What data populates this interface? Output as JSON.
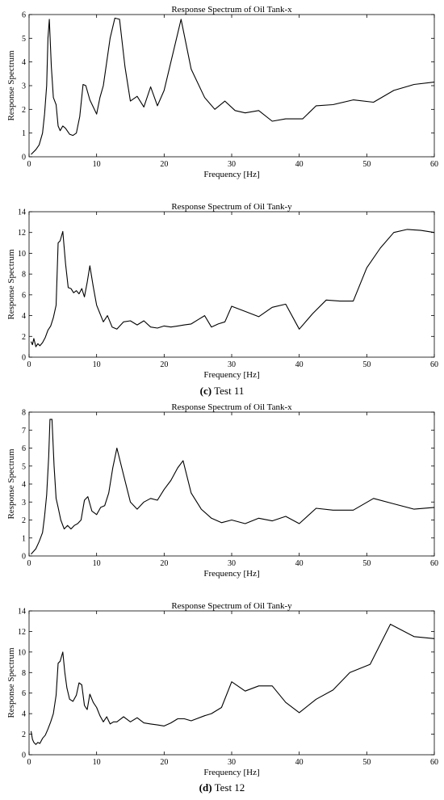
{
  "captions": [
    {
      "label": "(c)",
      "text": "Test 11"
    },
    {
      "label": "(d)",
      "text": "Test 12"
    }
  ],
  "chart_data": [
    {
      "type": "line",
      "title": "Response Spectrum of Oil Tank-x",
      "xlabel": "Frequency [Hz]",
      "ylabel": "Response Spectrum",
      "xlim": [
        0,
        60
      ],
      "ylim": [
        0,
        6
      ],
      "xticks": [
        0,
        10,
        20,
        30,
        40,
        50,
        60
      ],
      "yticks": [
        0,
        1,
        2,
        3,
        4,
        5,
        6
      ],
      "grid": false,
      "x": [
        0.3,
        1,
        1.5,
        2,
        2.3,
        2.6,
        2.8,
        3,
        3.3,
        3.6,
        4,
        4.3,
        4.6,
        5,
        5.4,
        6,
        6.5,
        7,
        7.5,
        8,
        8.4,
        9,
        9.5,
        10,
        10.5,
        11,
        12,
        12.7,
        13.4,
        14.2,
        15,
        16,
        17,
        18,
        19,
        20,
        22.5,
        24,
        26,
        27.5,
        29,
        30.5,
        32,
        34,
        36,
        38,
        40.5,
        42.5,
        45,
        48,
        51,
        54,
        57,
        60
      ],
      "y": [
        0.1,
        0.3,
        0.5,
        1.0,
        1.8,
        3.0,
        5.0,
        5.8,
        3.8,
        2.5,
        2.2,
        1.3,
        1.1,
        1.3,
        1.2,
        0.95,
        0.9,
        1.0,
        1.7,
        3.05,
        3.0,
        2.4,
        2.1,
        1.8,
        2.5,
        3.0,
        5.0,
        5.85,
        5.8,
        3.8,
        2.35,
        2.55,
        2.1,
        2.95,
        2.15,
        2.8,
        5.8,
        3.7,
        2.5,
        2.0,
        2.35,
        1.95,
        1.85,
        1.95,
        1.5,
        1.6,
        1.6,
        2.15,
        2.2,
        2.4,
        2.3,
        2.8,
        3.05,
        3.15
      ]
    },
    {
      "type": "line",
      "title": "Response Spectrum of Oil Tank-y",
      "xlabel": "Frequency [Hz]",
      "ylabel": "Response Spectrum",
      "xlim": [
        0,
        60
      ],
      "ylim": [
        0,
        14
      ],
      "xticks": [
        0,
        10,
        20,
        30,
        40,
        50,
        60
      ],
      "yticks": [
        0,
        2,
        4,
        6,
        8,
        10,
        12,
        14
      ],
      "grid": false,
      "x": [
        0.3,
        0.5,
        0.7,
        1,
        1.3,
        1.6,
        2,
        2.4,
        2.8,
        3.2,
        3.6,
        4,
        4.3,
        4.6,
        5,
        5.4,
        5.8,
        6.2,
        6.6,
        7,
        7.4,
        7.8,
        8.2,
        8.6,
        9,
        9.5,
        10,
        11,
        11.6,
        12.3,
        13,
        14,
        15,
        16,
        17,
        18,
        19,
        20,
        21,
        22,
        23,
        24,
        25,
        26,
        27,
        28,
        29,
        30,
        32,
        34,
        36,
        38,
        40,
        42,
        44,
        46,
        48,
        50,
        52,
        54,
        56,
        58,
        60
      ],
      "y": [
        1.5,
        1.2,
        1.8,
        1.0,
        1.3,
        1.1,
        1.4,
        1.9,
        2.6,
        3.0,
        3.8,
        5.0,
        11.0,
        11.2,
        12.1,
        9.0,
        6.7,
        6.6,
        6.2,
        6.4,
        6.1,
        6.6,
        5.8,
        7.2,
        8.8,
        6.8,
        5.0,
        3.4,
        4.0,
        2.9,
        2.7,
        3.4,
        3.5,
        3.1,
        3.5,
        2.9,
        2.8,
        3.0,
        2.9,
        3.0,
        3.1,
        3.2,
        3.6,
        4.0,
        2.9,
        3.2,
        3.4,
        4.9,
        4.4,
        3.9,
        4.8,
        5.1,
        2.7,
        4.2,
        5.5,
        5.4,
        5.4,
        8.6,
        10.5,
        12.0,
        12.3,
        12.2,
        12.0
      ]
    },
    {
      "type": "line",
      "title": "Response Spectrum of Oil Tank-x",
      "xlabel": "Frequency [Hz]",
      "ylabel": "Response Spectrum",
      "xlim": [
        0,
        60
      ],
      "ylim": [
        0,
        8
      ],
      "xticks": [
        0,
        10,
        20,
        30,
        40,
        50,
        60
      ],
      "yticks": [
        0,
        1,
        2,
        3,
        4,
        5,
        6,
        7,
        8
      ],
      "grid": false,
      "x": [
        0.3,
        1,
        1.5,
        2,
        2.3,
        2.6,
        2.9,
        3.1,
        3.4,
        3.7,
        4,
        4.3,
        4.7,
        5.2,
        5.7,
        6.2,
        6.7,
        7.2,
        7.7,
        8.2,
        8.7,
        9.3,
        10,
        10.6,
        11.2,
        11.8,
        12.4,
        13,
        14,
        15,
        16,
        17,
        18,
        19,
        20,
        21,
        22,
        22.8,
        24,
        25.5,
        27,
        28.5,
        30,
        32,
        34,
        36,
        38,
        40,
        42.5,
        45,
        48,
        51,
        54,
        57,
        60
      ],
      "y": [
        0.1,
        0.4,
        0.8,
        1.3,
        2.2,
        3.4,
        5.5,
        7.6,
        7.6,
        5.0,
        3.2,
        2.7,
        2.0,
        1.5,
        1.7,
        1.5,
        1.7,
        1.8,
        2.0,
        3.1,
        3.3,
        2.5,
        2.3,
        2.7,
        2.8,
        3.5,
        4.9,
        6.0,
        4.5,
        3.0,
        2.6,
        3.0,
        3.2,
        3.1,
        3.7,
        4.2,
        4.9,
        5.3,
        3.5,
        2.6,
        2.1,
        1.85,
        2.0,
        1.8,
        2.1,
        1.95,
        2.2,
        1.8,
        2.65,
        2.55,
        2.55,
        3.2,
        2.9,
        2.6,
        2.7
      ]
    },
    {
      "type": "line",
      "title": "Response Spectrum of Oil Tank-y",
      "xlabel": "Frequency [Hz]",
      "ylabel": "Response Spectrum",
      "xlim": [
        0,
        60
      ],
      "ylim": [
        0,
        14
      ],
      "xticks": [
        0,
        10,
        20,
        30,
        40,
        50,
        60
      ],
      "yticks": [
        0,
        2,
        4,
        6,
        8,
        10,
        12,
        14
      ],
      "grid": false,
      "x": [
        0.3,
        0.5,
        0.7,
        1,
        1.3,
        1.6,
        2,
        2.4,
        2.8,
        3.2,
        3.6,
        4,
        4.3,
        4.6,
        5,
        5.3,
        5.6,
        6,
        6.5,
        7,
        7.4,
        7.8,
        8.2,
        8.6,
        9,
        9.5,
        10,
        10.5,
        11,
        11.5,
        12,
        12.5,
        13,
        14,
        15,
        16,
        17,
        18,
        19,
        20,
        21,
        22,
        23,
        24,
        26,
        27,
        28.5,
        30,
        32,
        34,
        36,
        38,
        40,
        42.5,
        45,
        47.5,
        50.5,
        53.5,
        57,
        60
      ],
      "y": [
        2.3,
        1.5,
        1.2,
        1.0,
        1.2,
        1.1,
        1.6,
        1.9,
        2.5,
        3.2,
        4.0,
        5.8,
        8.9,
        9.1,
        10.0,
        8.0,
        6.5,
        5.4,
        5.2,
        5.8,
        7.0,
        6.8,
        4.8,
        4.4,
        5.9,
        5.1,
        4.6,
        3.8,
        3.2,
        3.7,
        3.0,
        3.2,
        3.2,
        3.7,
        3.2,
        3.6,
        3.1,
        3.0,
        2.9,
        2.8,
        3.1,
        3.5,
        3.5,
        3.3,
        3.8,
        4.0,
        4.6,
        7.1,
        6.2,
        6.7,
        6.7,
        5.1,
        4.1,
        5.4,
        6.3,
        8.0,
        8.8,
        12.7,
        11.5,
        11.3
      ]
    }
  ]
}
